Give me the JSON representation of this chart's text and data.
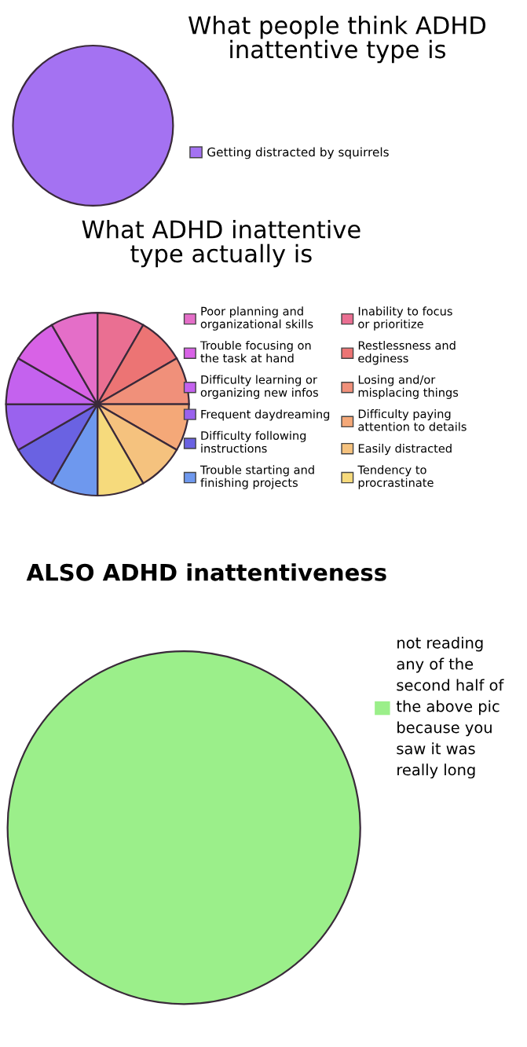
{
  "chart_data": [
    {
      "type": "pie",
      "title": "What people think ADHD\ninattentive type is",
      "categories": [
        "Getting distracted by squirrels"
      ],
      "values": [
        100
      ],
      "colors": [
        "#a472f2"
      ],
      "legend": "right"
    },
    {
      "type": "pie",
      "title": "What ADHD inattentive\ntype actually is",
      "categories": [
        "Inability to focus\nor prioritize",
        "Restlessness and\nedginess",
        "Losing and/or\nmisplacing things",
        "Difficulty paying\nattention to details",
        "Easily distracted",
        "Tendency to\nprocrastinate",
        "Trouble starting and\nfinishing projects",
        "Difficulty following\ninstructions",
        "Frequent daydreaming",
        "Difficulty learning or\norganizing new infos",
        "Trouble focusing on\nthe task at hand",
        "Poor planning and\norganizational skills"
      ],
      "values": [
        8.333,
        8.333,
        8.333,
        8.333,
        8.333,
        8.333,
        8.333,
        8.333,
        8.333,
        8.333,
        8.333,
        8.333
      ],
      "colors": [
        "#ea6f92",
        "#ec7474",
        "#f0907a",
        "#f4a878",
        "#f5c27e",
        "#f6da7c",
        "#6e98ee",
        "#6a62e2",
        "#9a62ee",
        "#c462ee",
        "#d862e6",
        "#e46ec8"
      ],
      "legend": "right"
    },
    {
      "type": "pie",
      "title": "ALSO ADHD inattentiveness",
      "categories": [
        "not reading\nany of the\nsecond half of\nthe above pic\nbecause you\nsaw it was\nreally long"
      ],
      "values": [
        100
      ],
      "colors": [
        "#9bef8a"
      ],
      "legend": "right"
    }
  ]
}
